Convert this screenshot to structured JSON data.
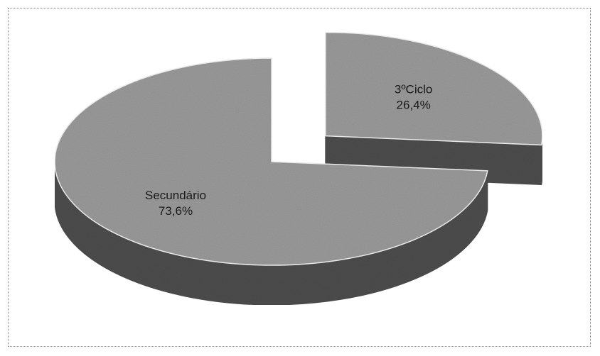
{
  "chart_data": {
    "type": "pie",
    "title": "",
    "slices": [
      {
        "label": "3ºCiclo",
        "value": 26.4,
        "value_label": "26,4%",
        "exploded": true
      },
      {
        "label": "Secundário",
        "value": 73.6,
        "value_label": "73,6%",
        "exploded": false
      }
    ],
    "legend": "none",
    "style": "3d"
  },
  "colors": {
    "top_fill": "#9a9a9a",
    "side_fill": "#4d4d4d",
    "edge": "#f2f2f2",
    "text": "#1a1a1a"
  }
}
